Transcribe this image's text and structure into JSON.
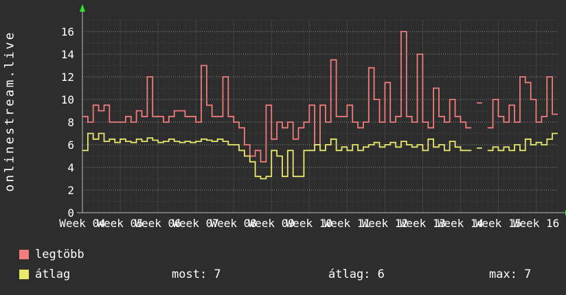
{
  "site_title": "onlinestream.live",
  "legend": {
    "series1": {
      "label": "legtöbb",
      "color": "#f17c7c"
    },
    "series2": {
      "label": "átlag",
      "color": "#e9e96e"
    }
  },
  "stats": {
    "most": "most: 7",
    "atlag": "átlag: 6",
    "max": "max: 7"
  },
  "chart_data": {
    "type": "line",
    "style": "step",
    "title": "",
    "xlabel": "",
    "ylabel": "",
    "ylim": [
      0,
      18
    ],
    "yticks": [
      0,
      2,
      4,
      6,
      8,
      10,
      12,
      14,
      16
    ],
    "x_tick_labels": [
      "Week 04",
      "Week 05",
      "Week 06",
      "Week 07",
      "Week 08",
      "Week 09",
      "Week 10",
      "Week 11",
      "Week 12",
      "Week 13",
      "Week 14",
      "Week 15",
      "Week 16"
    ],
    "points_per_week": 7,
    "grid": true,
    "legend_position": "bottom-left",
    "colors": {
      "background": "#2d2d2d",
      "grid": "#ffffff",
      "axis": "#bbbbbb",
      "axis_arrow": "#2ee52e"
    },
    "series": [
      {
        "name": "legtöbb",
        "color": "#f17c7c",
        "values": [
          8.5,
          8,
          9.5,
          9,
          9.5,
          8,
          8,
          8,
          8.5,
          8,
          9,
          8.5,
          12,
          8.5,
          8.5,
          8,
          8.5,
          9,
          9,
          8.5,
          8.5,
          8,
          13,
          9.5,
          8.5,
          8.5,
          12,
          8.5,
          8,
          7.5,
          6,
          5,
          5.5,
          4.5,
          9.5,
          6.5,
          8,
          7.5,
          8,
          6.5,
          7.5,
          8,
          9.5,
          6,
          9.5,
          8,
          13.5,
          8.5,
          8.5,
          9.5,
          8,
          7.5,
          8,
          12.8,
          10,
          8,
          11.5,
          8,
          8.5,
          16,
          8.5,
          8,
          14,
          8,
          7.5,
          11,
          8.5,
          8,
          10,
          8.5,
          8,
          7.5,
          null,
          9.7,
          null,
          7.5,
          10,
          8.5,
          8,
          9.5,
          8,
          12,
          11.5,
          10,
          8,
          8.5,
          12,
          8.7
        ]
      },
      {
        "name": "átlag",
        "color": "#e9e96e",
        "values": [
          5.5,
          7,
          6.5,
          7,
          6.3,
          6.5,
          6.2,
          6.5,
          6.3,
          6.2,
          6.5,
          6.3,
          6.6,
          6.4,
          6.2,
          6.3,
          6.5,
          6.3,
          6.2,
          6.3,
          6.2,
          6.3,
          6.5,
          6.4,
          6.3,
          6.5,
          6.3,
          6,
          6,
          5.5,
          5,
          4.5,
          3.2,
          3,
          3.2,
          5.5,
          5,
          3.2,
          5.5,
          3.2,
          3.2,
          5.5,
          5.5,
          6,
          5.5,
          6,
          6.5,
          5.5,
          5.8,
          5.5,
          6,
          5.5,
          5.8,
          6,
          6.2,
          5.8,
          6,
          6.2,
          5.8,
          6.3,
          6,
          5.8,
          6,
          5.5,
          6.5,
          5.8,
          6,
          5.5,
          6.3,
          5.8,
          5.5,
          5.5,
          null,
          5.7,
          null,
          5.5,
          5.8,
          5.5,
          5.8,
          5.5,
          6,
          5.5,
          6.5,
          6,
          6.2,
          6,
          6.5,
          7
        ]
      }
    ]
  }
}
